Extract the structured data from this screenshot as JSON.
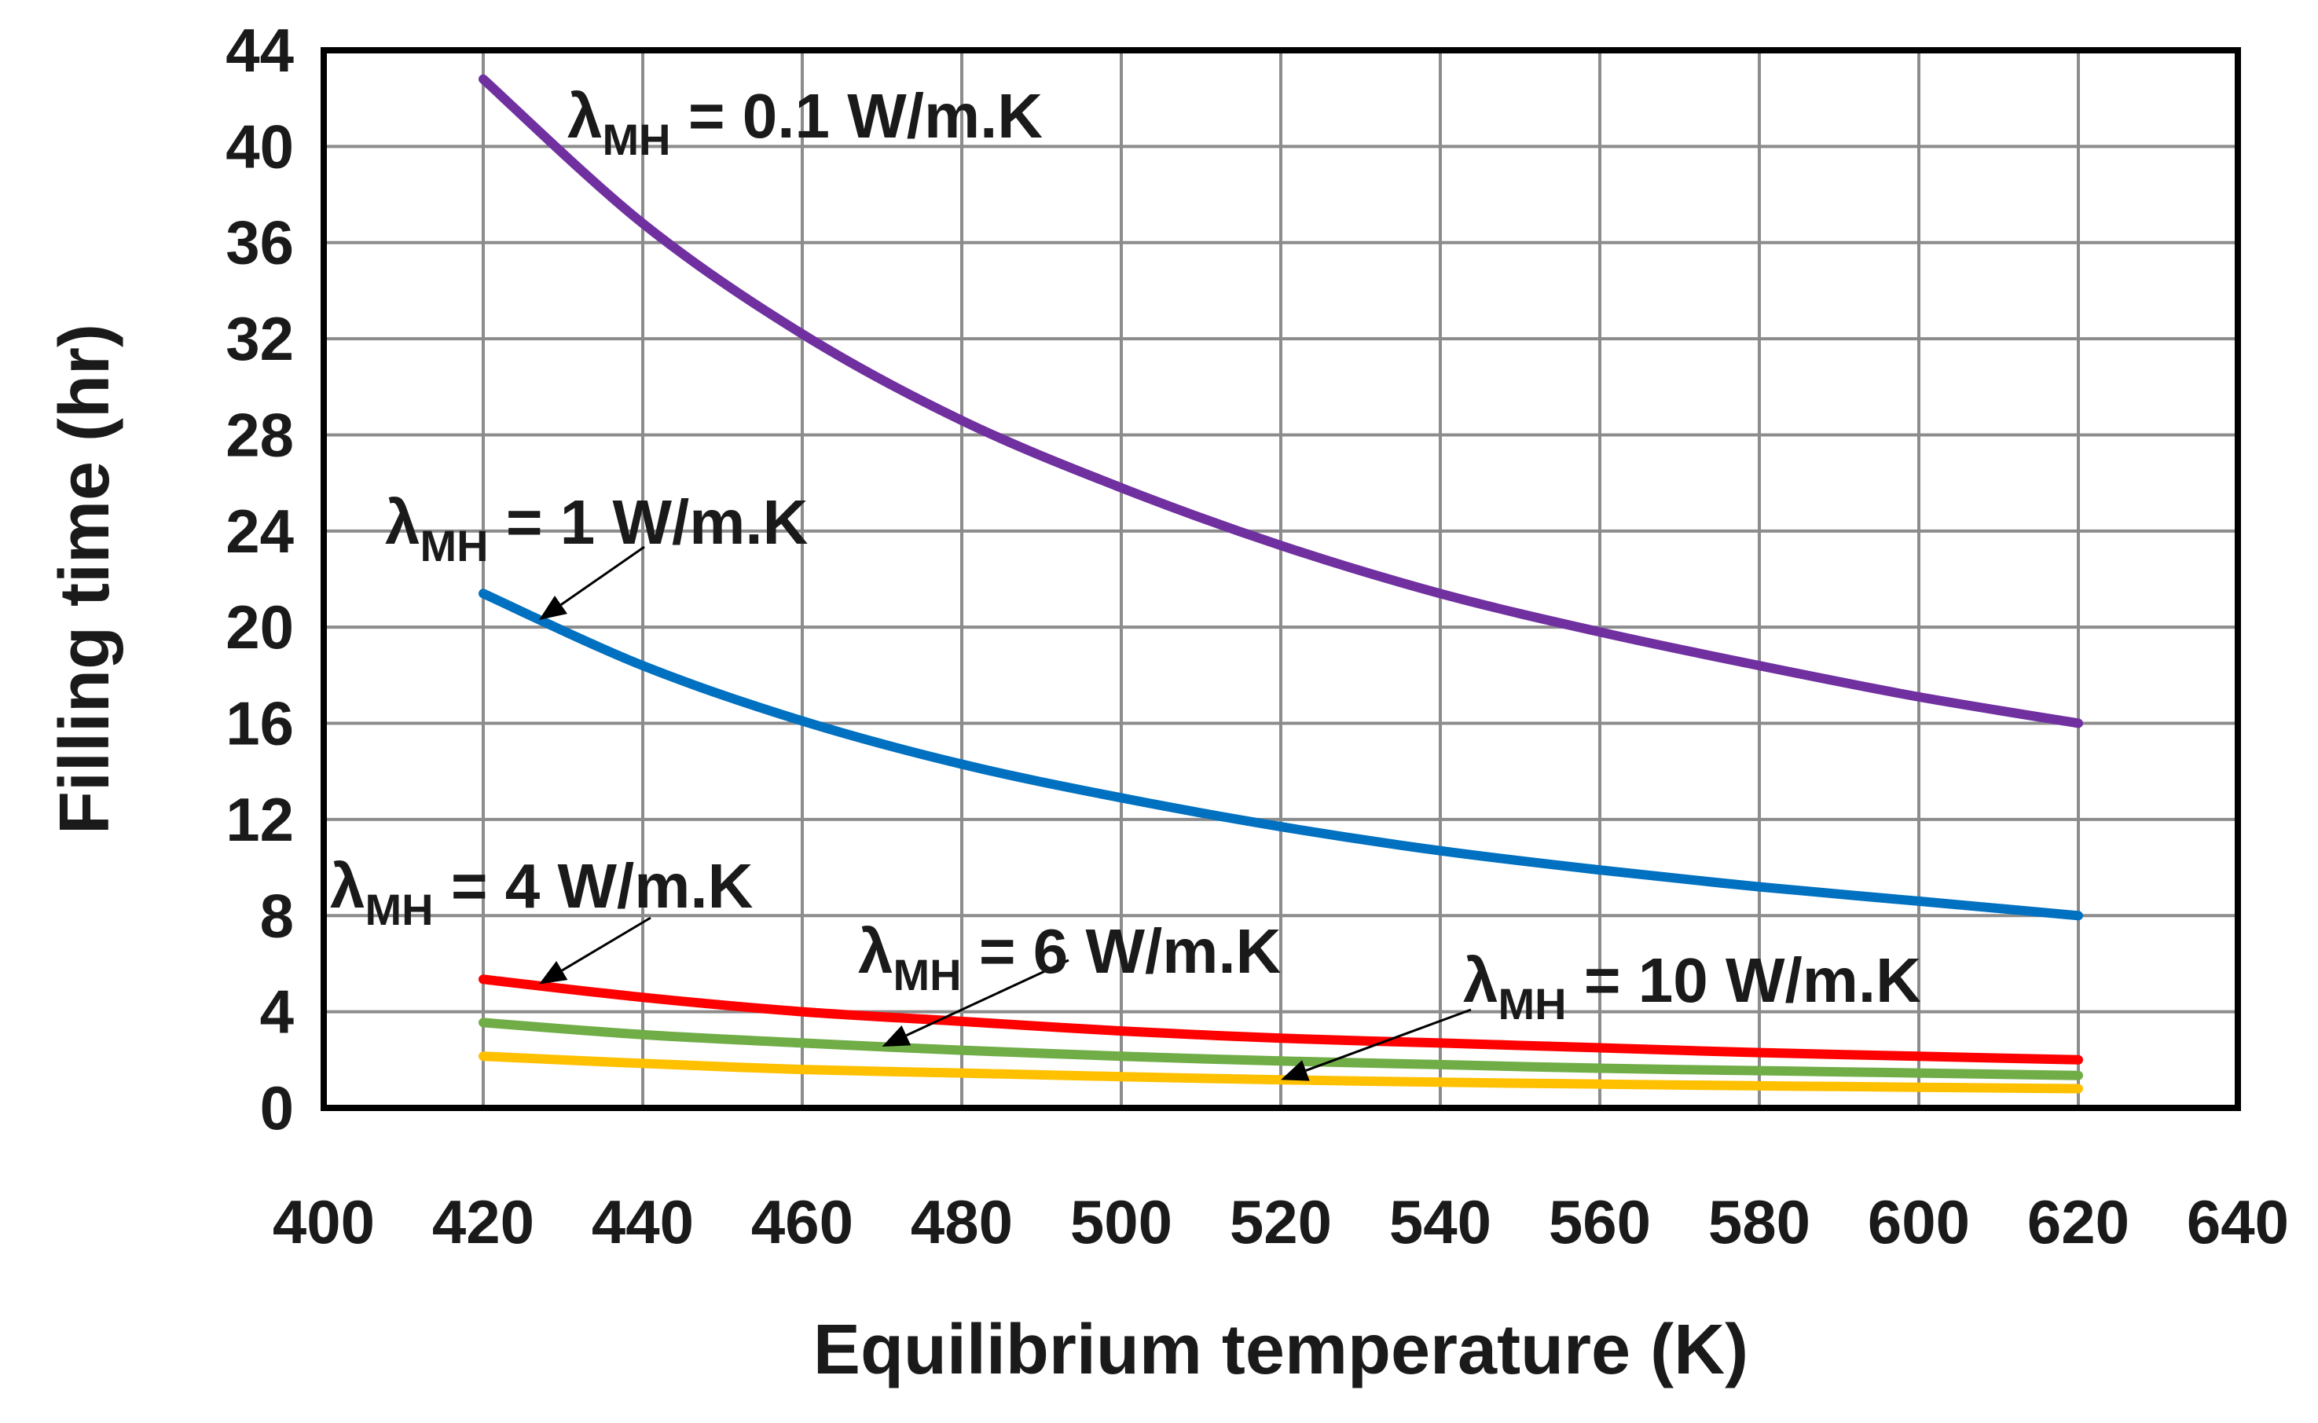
{
  "chart_data": {
    "type": "line",
    "title": "",
    "xlabel": "Equilibrium temperature (K)",
    "ylabel": "Filling time (hr)",
    "xlim": [
      400,
      640
    ],
    "ylim": [
      0,
      44
    ],
    "xticks": [
      "400",
      "420",
      "440",
      "460",
      "480",
      "500",
      "520",
      "540",
      "560",
      "580",
      "600",
      "620",
      "640"
    ],
    "yticks": [
      "0",
      "4",
      "8",
      "12",
      "16",
      "20",
      "24",
      "28",
      "32",
      "36",
      "40",
      "44"
    ],
    "grid": true,
    "x": [
      420,
      440,
      460,
      480,
      500,
      520,
      540,
      560,
      580,
      600,
      620
    ],
    "series": [
      {
        "name": "λMH = 0.1 W/m.K",
        "color": "#7030A0",
        "values": [
          42.8,
          36.8,
          32.2,
          28.6,
          25.8,
          23.4,
          21.4,
          19.8,
          18.4,
          17.1,
          16.0
        ]
      },
      {
        "name": "λMH = 1 W/m.K",
        "color": "#0070C0",
        "values": [
          21.4,
          18.4,
          16.1,
          14.3,
          12.9,
          11.7,
          10.7,
          9.9,
          9.2,
          8.6,
          8.0
        ]
      },
      {
        "name": "λMH = 4 W/m.K",
        "color": "#FF0000",
        "values": [
          5.35,
          4.6,
          4.0,
          3.6,
          3.2,
          2.9,
          2.7,
          2.5,
          2.3,
          2.15,
          2.0
        ]
      },
      {
        "name": "λMH = 6 W/m.K",
        "color": "#70AD47",
        "values": [
          3.55,
          3.05,
          2.7,
          2.4,
          2.15,
          1.95,
          1.8,
          1.65,
          1.55,
          1.45,
          1.35
        ]
      },
      {
        "name": "λMH = 10 W/m.K",
        "color": "#FFC000",
        "values": [
          2.15,
          1.85,
          1.6,
          1.45,
          1.3,
          1.17,
          1.07,
          0.99,
          0.92,
          0.86,
          0.8
        ]
      }
    ],
    "annotations": [
      {
        "series": 0,
        "symbol": "λ",
        "sub": "MH",
        "rest": " = 0.1 W/m.K"
      },
      {
        "series": 1,
        "symbol": "λ",
        "sub": "MH",
        "rest": " = 1 W/m.K"
      },
      {
        "series": 2,
        "symbol": "λ",
        "sub": "MH",
        "rest": " = 4 W/m.K"
      },
      {
        "series": 3,
        "symbol": "λ",
        "sub": "MH",
        "rest": " = 6 W/m.K"
      },
      {
        "series": 4,
        "symbol": "λ",
        "sub": "MH",
        "rest": " = 10 W/m.K"
      }
    ]
  }
}
